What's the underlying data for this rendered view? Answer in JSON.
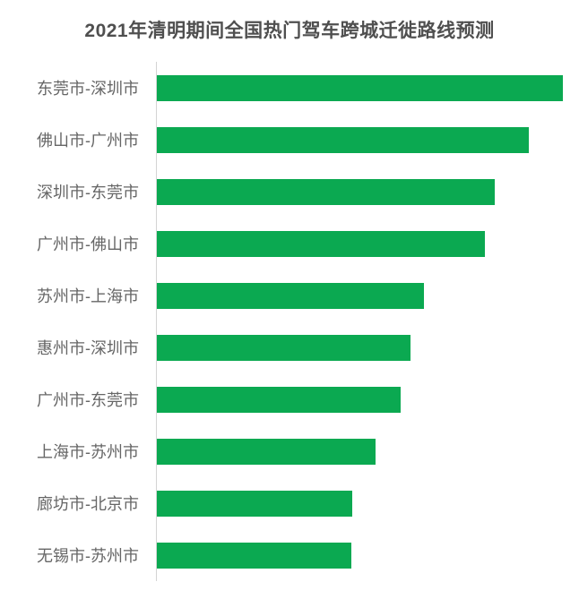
{
  "title": "2021年清明期间全国热门驾车跨城迁徙路线预测",
  "colors": {
    "bar": "#0ba951",
    "axis_line": "#d4d4d4",
    "title_text": "#4f4f4f",
    "label_text": "#666666",
    "background": "#ffffff"
  },
  "chart_data": {
    "type": "bar",
    "orientation": "horizontal",
    "title": "2021年清明期间全国热门驾车跨城迁徙路线预测",
    "categories": [
      "东莞市-深圳市",
      "佛山市-广州市",
      "深圳市-东莞市",
      "广州市-佛山市",
      "苏州市-上海市",
      "惠州市-深圳市",
      "广州市-东莞市",
      "上海市-苏州市",
      "廊坊市-北京市",
      "无锡市-苏州市"
    ],
    "values": [
      100,
      91.6,
      83.2,
      80.8,
      65.8,
      62.5,
      60.0,
      53.9,
      48.1,
      47.9
    ],
    "value_note": "relative migration index estimated from bar lengths, max bar = 100 (no numeric axis shown in chart)",
    "xlabel": "",
    "ylabel": "",
    "xlim": [
      0,
      100
    ],
    "grid": false,
    "legend": false,
    "value_labels": false,
    "bar_color": "#0ba951"
  }
}
